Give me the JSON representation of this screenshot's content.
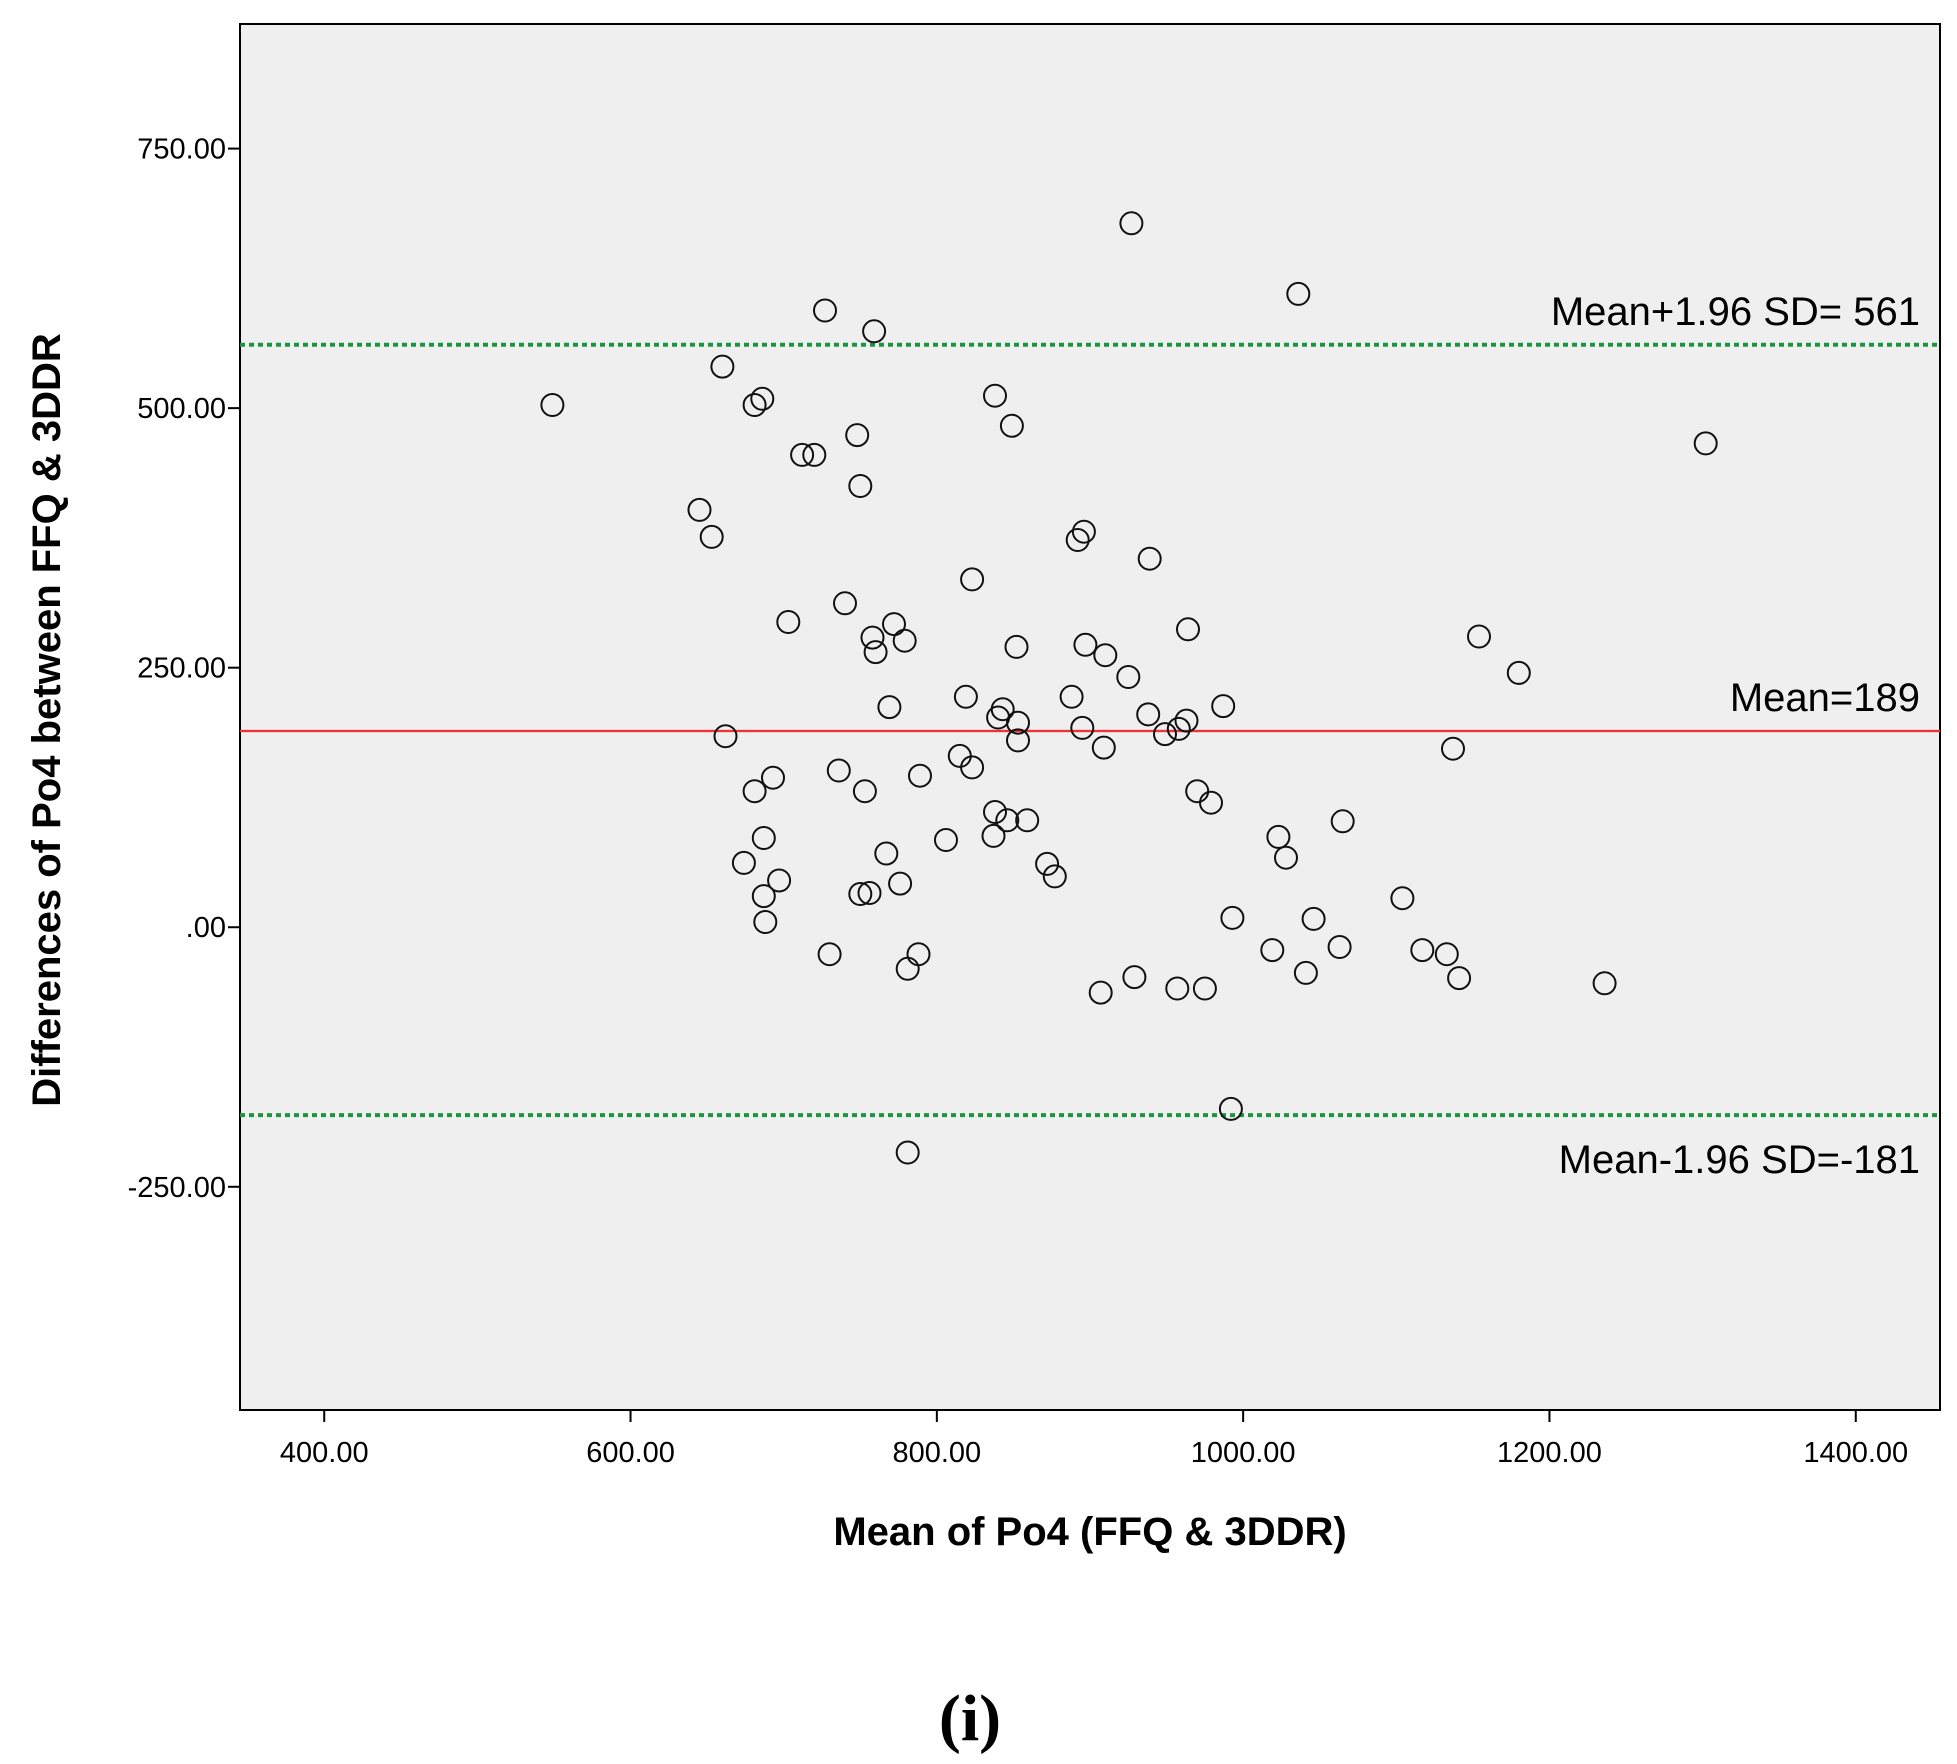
{
  "chart_data": {
    "type": "scatter",
    "title": "",
    "xlabel": "Mean of Po4 (FFQ & 3DDR)",
    "ylabel": "Differences of Po4 between FFQ & 3DDR",
    "xlim": [
      345,
      1455
    ],
    "ylim": [
      -465,
      870
    ],
    "x_ticks": [
      400,
      600,
      800,
      1000,
      1200,
      1400
    ],
    "x_tick_labels": [
      "400.00",
      "600.00",
      "800.00",
      "1000.00",
      "1200.00",
      "1400.00"
    ],
    "y_ticks": [
      -250,
      0,
      250,
      500,
      750
    ],
    "y_tick_labels": [
      "-250.00",
      ".00",
      "250.00",
      "500.00",
      "750.00"
    ],
    "grid": false,
    "background": "#efefef",
    "reference_lines": [
      {
        "name": "upper_limit",
        "value": 561,
        "label": "Mean+1.96 SD= 561",
        "color": "#1a9641",
        "style": "dotted",
        "label_position": "above-right"
      },
      {
        "name": "mean",
        "value": 189,
        "label": "Mean=189",
        "color": "#ee3333",
        "style": "solid",
        "label_position": "above-right"
      },
      {
        "name": "lower_limit",
        "value": -181,
        "label": "Mean-1.96 SD=-181",
        "color": "#1a9641",
        "style": "dotted",
        "label_position": "below-right"
      }
    ],
    "points": [
      [
        549,
        503
      ],
      [
        660,
        540
      ],
      [
        686,
        509
      ],
      [
        681,
        503
      ],
      [
        645,
        402
      ],
      [
        653,
        376
      ],
      [
        727,
        594
      ],
      [
        759,
        574
      ],
      [
        712,
        455
      ],
      [
        720,
        455
      ],
      [
        748,
        474
      ],
      [
        750,
        425
      ],
      [
        838,
        512
      ],
      [
        849,
        483
      ],
      [
        896,
        381
      ],
      [
        892,
        373
      ],
      [
        939,
        355
      ],
      [
        927,
        678
      ],
      [
        1036,
        610
      ],
      [
        1302,
        466
      ],
      [
        703,
        294
      ],
      [
        740,
        312
      ],
      [
        758,
        279
      ],
      [
        760,
        265
      ],
      [
        772,
        292
      ],
      [
        779,
        276
      ],
      [
        823,
        335
      ],
      [
        852,
        270
      ],
      [
        897,
        272
      ],
      [
        910,
        262
      ],
      [
        925,
        241
      ],
      [
        964,
        287
      ],
      [
        1154,
        280
      ],
      [
        1180,
        245
      ],
      [
        662,
        184
      ],
      [
        693,
        144
      ],
      [
        681,
        131
      ],
      [
        736,
        151
      ],
      [
        753,
        131
      ],
      [
        769,
        212
      ],
      [
        819,
        222
      ],
      [
        815,
        165
      ],
      [
        823,
        154
      ],
      [
        840,
        202
      ],
      [
        843,
        210
      ],
      [
        853,
        197
      ],
      [
        853,
        180
      ],
      [
        888,
        222
      ],
      [
        895,
        192
      ],
      [
        909,
        173
      ],
      [
        938,
        205
      ],
      [
        949,
        186
      ],
      [
        958,
        191
      ],
      [
        963,
        199
      ],
      [
        987,
        213
      ],
      [
        970,
        131
      ],
      [
        979,
        120
      ],
      [
        1137,
        172
      ],
      [
        687,
        86
      ],
      [
        674,
        62
      ],
      [
        697,
        45
      ],
      [
        687,
        30
      ],
      [
        688,
        5
      ],
      [
        767,
        71
      ],
      [
        750,
        32
      ],
      [
        756,
        33
      ],
      [
        776,
        42
      ],
      [
        789,
        146
      ],
      [
        806,
        84
      ],
      [
        837,
        88
      ],
      [
        838,
        111
      ],
      [
        846,
        103
      ],
      [
        859,
        103
      ],
      [
        872,
        61
      ],
      [
        877,
        49
      ],
      [
        1023,
        87
      ],
      [
        1028,
        67
      ],
      [
        1065,
        102
      ],
      [
        1104,
        28
      ],
      [
        730,
        -26
      ],
      [
        781,
        -40
      ],
      [
        788,
        -26
      ],
      [
        907,
        -63
      ],
      [
        929,
        -48
      ],
      [
        957,
        -59
      ],
      [
        975,
        -59
      ],
      [
        993,
        9
      ],
      [
        992,
        -175
      ],
      [
        1019,
        -22
      ],
      [
        1046,
        8
      ],
      [
        1041,
        -44
      ],
      [
        1063,
        -19
      ],
      [
        1117,
        -22
      ],
      [
        1133,
        -26
      ],
      [
        1141,
        -49
      ],
      [
        1236,
        -54
      ],
      [
        781,
        -217
      ]
    ]
  },
  "panel_label": "(i)"
}
